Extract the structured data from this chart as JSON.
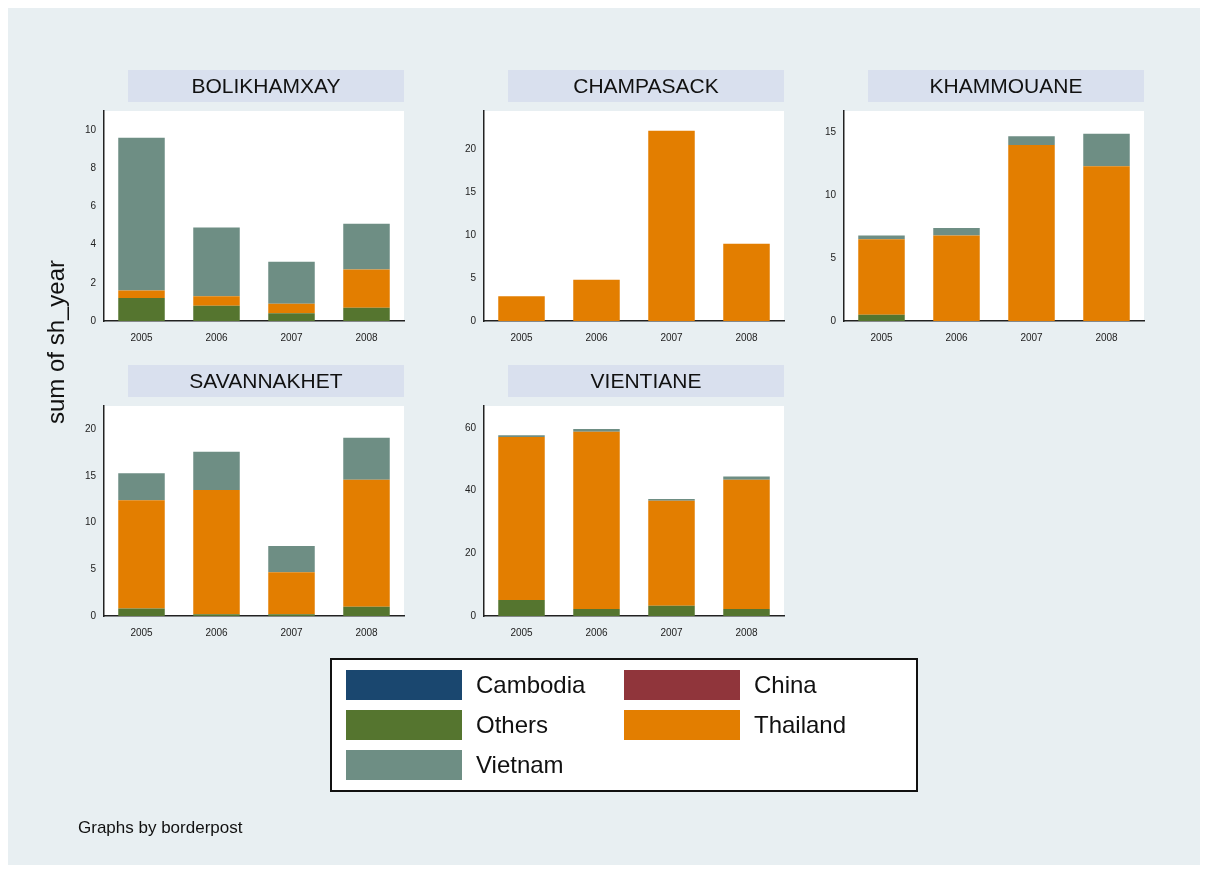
{
  "chart_data": [
    {
      "type": "bar",
      "title": "BOLIKHAMXAY",
      "ylabel": "sum of sh_year",
      "stacked": true,
      "legend": "bottom",
      "categories": [
        "2005",
        "2006",
        "2007",
        "2008"
      ],
      "ylim": [
        0,
        11
      ],
      "yticks": [
        0,
        2,
        4,
        6,
        8,
        10
      ],
      "series": [
        {
          "name": "Cambodia",
          "color": "#1a476f",
          "values": [
            0,
            0,
            0,
            0
          ]
        },
        {
          "name": "China",
          "color": "#90353b",
          "values": [
            0,
            0,
            0,
            0
          ]
        },
        {
          "name": "Others",
          "color": "#55752f",
          "values": [
            1.2,
            0.8,
            0.4,
            0.7
          ]
        },
        {
          "name": "Thailand",
          "color": "#e37e00",
          "values": [
            0.4,
            0.5,
            0.5,
            2.0
          ]
        },
        {
          "name": "Vietnam",
          "color": "#6e8e84",
          "values": [
            8.0,
            3.6,
            2.2,
            2.4
          ]
        }
      ]
    },
    {
      "type": "bar",
      "title": "CHAMPASACK",
      "stacked": true,
      "categories": [
        "2005",
        "2006",
        "2007",
        "2008"
      ],
      "ylim": [
        0,
        24.5
      ],
      "yticks": [
        0,
        5,
        10,
        15,
        20
      ],
      "series": [
        {
          "color": "#1a476f",
          "values": [
            0,
            0,
            0,
            0
          ]
        },
        {
          "color": "#90353b",
          "values": [
            0,
            0,
            0,
            0
          ]
        },
        {
          "color": "#55752f",
          "values": [
            0,
            0,
            0,
            0
          ]
        },
        {
          "color": "#e37e00",
          "values": [
            2.9,
            4.8,
            22.2,
            9.0
          ]
        },
        {
          "color": "#6e8e84",
          "values": [
            0,
            0,
            0,
            0
          ]
        }
      ]
    },
    {
      "type": "bar",
      "title": "KHAMMOUANE",
      "stacked": true,
      "categories": [
        "2005",
        "2006",
        "2007",
        "2008"
      ],
      "ylim": [
        0,
        16.7
      ],
      "yticks": [
        0,
        5,
        10,
        15
      ],
      "series": [
        {
          "color": "#1a476f",
          "values": [
            0,
            0,
            0,
            0
          ]
        },
        {
          "color": "#90353b",
          "values": [
            0,
            0,
            0,
            0
          ]
        },
        {
          "color": "#55752f",
          "values": [
            0.5,
            0,
            0,
            0
          ]
        },
        {
          "color": "#e37e00",
          "values": [
            6.0,
            6.8,
            14.0,
            12.3
          ]
        },
        {
          "color": "#6e8e84",
          "values": [
            0.3,
            0.6,
            0.7,
            2.6
          ]
        }
      ]
    },
    {
      "type": "bar",
      "title": "SAVANNAKHET",
      "stacked": true,
      "categories": [
        "2005",
        "2006",
        "2007",
        "2008"
      ],
      "ylim": [
        0,
        22.5
      ],
      "yticks": [
        0,
        5,
        10,
        15,
        20
      ],
      "series": [
        {
          "color": "#1a476f",
          "values": [
            0,
            0,
            0,
            0
          ]
        },
        {
          "color": "#90353b",
          "values": [
            0,
            0,
            0,
            0
          ]
        },
        {
          "color": "#55752f",
          "values": [
            0.8,
            0.2,
            0.2,
            1.0
          ]
        },
        {
          "color": "#e37e00",
          "values": [
            11.6,
            13.3,
            4.5,
            13.6
          ]
        },
        {
          "color": "#6e8e84",
          "values": [
            2.9,
            4.1,
            2.8,
            4.5
          ]
        }
      ]
    },
    {
      "type": "bar",
      "title": "VIENTIANE",
      "stacked": true,
      "annotations": [
        "Graphs by borderpost"
      ],
      "categories": [
        "2005",
        "2006",
        "2007",
        "2008"
      ],
      "ylim": [
        0,
        67
      ],
      "yticks": [
        0,
        20,
        40,
        60
      ],
      "series": [
        {
          "color": "#1a476f",
          "values": [
            0,
            0,
            0,
            0
          ]
        },
        {
          "color": "#90353b",
          "values": [
            0,
            0,
            0,
            0
          ]
        },
        {
          "color": "#55752f",
          "values": [
            5.1,
            2.2,
            3.3,
            2.2
          ]
        },
        {
          "color": "#e37e00",
          "values": [
            52.0,
            56.6,
            33.5,
            41.3
          ]
        },
        {
          "color": "#6e8e84",
          "values": [
            0.6,
            0.9,
            0.5,
            1.0
          ]
        }
      ]
    }
  ]
}
